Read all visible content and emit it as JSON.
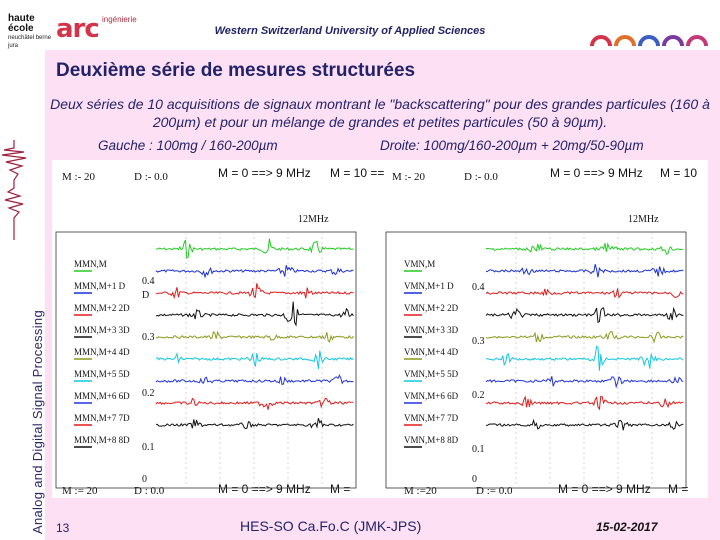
{
  "logo": {
    "hes_line1": "haute école",
    "hes_line2": "neuchâtel berne jura",
    "arc_text": "arc",
    "arc_sub": "ingénierie",
    "side_label": "Analog and Digital Signal Processing"
  },
  "header": {
    "school_name": "Western Switzerland University of Applied Sciences"
  },
  "slide": {
    "title": "Deuxième série de mesures structurées",
    "description": "Deux séries de 10 acquisitions de signaux montrant le \"backscattering\" pour des grandes particules (160 à 200µm) et pour un mélange de grandes et petites particules (50 à 90µm).",
    "left_caption": "Gauche : 100mg / 160-200µm",
    "right_caption": "Droite: 100mg/160-200µm + 20mg/50-90µm"
  },
  "left_panel": {
    "top_m": "M :- 20",
    "top_d": "D :- 0.0",
    "top_eq": "M = 0 ==> 9 MHz",
    "top_m10": "M = 10 ==",
    "freq": "12MHz",
    "bottom_m": "M := 20",
    "bottom_d": "D : 0.0",
    "bottom_eq": "M = 0 ==> 9 MHz",
    "bottom_m2": "M =",
    "y_ticks": [
      "0.4",
      "D",
      "0.3",
      "0.2",
      "0.1",
      "0"
    ],
    "row_labels": [
      "MMN,M",
      "MMN,M+1 D",
      "MMN,M+2 2D",
      "MMN,M+3 3D",
      "MMN,M+4 4D",
      "MMN,M+5 5D",
      "MMN,M+6 6D",
      "MMN,M+7 7D",
      "MMN,M+8 8D"
    ]
  },
  "right_panel": {
    "top_m": "M :- 20",
    "top_d": "D :- 0.0",
    "top_eq": "M = 0 ==> 9 MHz",
    "top_m10": "M = 10",
    "freq": "12MHz",
    "bottom_m": "M :=20",
    "bottom_d": "D := 0.0",
    "bottom_eq": "M = 0 ==> 9 MHz",
    "bottom_m2": "M =",
    "y_ticks": [
      "0.4",
      "0.3",
      "0.2",
      "0.1",
      "0"
    ],
    "row_labels": [
      "VMN,M",
      "VMN,M+1 D",
      "VMN,M+2 2D",
      "VMN,M+3 3D",
      "VMN,M+4 4D",
      "VMN,M+5 5D",
      "VMN,M+6 6D",
      "VMN,M+7 7D",
      "VMN,M+8 8D"
    ]
  },
  "trace_colors": [
    "#22cc22",
    "#1a2fd6",
    "#e01b1b",
    "#111111",
    "#8a9a1a",
    "#10c8e0",
    "#2233dd",
    "#e01b1b",
    "#111111"
  ],
  "footer": {
    "page_number": "13",
    "center_text": "HES-SO Ca.Fo.C (JMK-JPS)",
    "date": "15-02-2017"
  }
}
